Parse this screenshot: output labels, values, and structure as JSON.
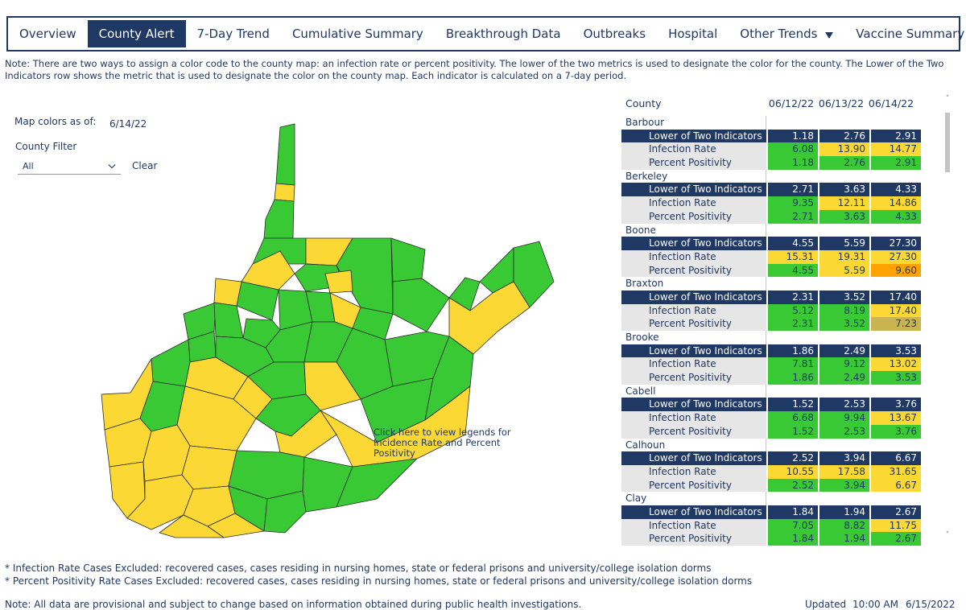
{
  "nav": {
    "items": [
      {
        "label": "Overview",
        "active": false
      },
      {
        "label": "County Alert",
        "active": true
      },
      {
        "label": "7-Day Trend",
        "active": false
      },
      {
        "label": "Cumulative Summary",
        "active": false
      },
      {
        "label": "Breakthrough Data",
        "active": false
      },
      {
        "label": "Outbreaks",
        "active": false
      },
      {
        "label": "Hospital",
        "active": false
      },
      {
        "label": "Other Trends",
        "active": false,
        "icon": "caret-down-icon"
      },
      {
        "label": "Vaccine Summary",
        "active": false
      }
    ],
    "active_color": "#1f3864"
  },
  "note_top": "Note: There are two ways to assign a color code to the county map: an infection rate or percent positivity. The lower of the two metrics is used to designate the color for the county. The Lower of the Two Indicators row shows the metric that is used to designate the color on the county map. Each indicator is calculated on a 7-day period.",
  "map_panel": {
    "colors_label": "Map colors as of:",
    "colors_date": "6/14/22",
    "filter_label": "County Filter",
    "filter_value": "All",
    "clear_label": "Clear",
    "legend_link": "Click here to view legends for Incidence Rate and Percent Positivity",
    "colors": {
      "green": "#38c935",
      "yellow": "#fcd835",
      "orange": "#ffa200",
      "tan": "#c9b44f",
      "navy": "#1f3864"
    }
  },
  "table": {
    "header": {
      "county": "County",
      "dates": [
        "06/12/22",
        "06/13/22",
        "06/14/22"
      ]
    },
    "counties": [
      {
        "name": "Barbour",
        "rows": [
          {
            "label": "Lower of Two Indicators",
            "values": [
              "1.18",
              "2.76",
              "2.91"
            ]
          },
          {
            "label": "Infection Rate",
            "values": [
              "6.08",
              "13.90",
              "14.77"
            ],
            "colors": [
              "green",
              "yellow",
              "yellow"
            ]
          },
          {
            "label": "Percent Positivity",
            "values": [
              "1.18",
              "2.76",
              "2.91"
            ],
            "colors": [
              "green",
              "green",
              "green"
            ]
          }
        ]
      },
      {
        "name": "Berkeley",
        "rows": [
          {
            "label": "Lower of Two Indicators",
            "values": [
              "2.71",
              "3.63",
              "4.33"
            ]
          },
          {
            "label": "Infection Rate",
            "values": [
              "9.35",
              "12.11",
              "14.86"
            ],
            "colors": [
              "green",
              "yellow",
              "yellow"
            ]
          },
          {
            "label": "Percent Positivity",
            "values": [
              "2.71",
              "3.63",
              "4.33"
            ],
            "colors": [
              "green",
              "green",
              "green"
            ]
          }
        ]
      },
      {
        "name": "Boone",
        "rows": [
          {
            "label": "Lower of Two Indicators",
            "values": [
              "4.55",
              "5.59",
              "27.30"
            ]
          },
          {
            "label": "Infection Rate",
            "values": [
              "15.31",
              "19.31",
              "27.30"
            ],
            "colors": [
              "yellow",
              "yellow",
              "yellow"
            ]
          },
          {
            "label": "Percent Positivity",
            "values": [
              "4.55",
              "5.59",
              "9.60"
            ],
            "colors": [
              "green",
              "yellow",
              "orange"
            ]
          }
        ]
      },
      {
        "name": "Braxton",
        "rows": [
          {
            "label": "Lower of Two Indicators",
            "values": [
              "2.31",
              "3.52",
              "17.40"
            ]
          },
          {
            "label": "Infection Rate",
            "values": [
              "5.12",
              "8.19",
              "17.40"
            ],
            "colors": [
              "green",
              "green",
              "yellow"
            ]
          },
          {
            "label": "Percent Positivity",
            "values": [
              "2.31",
              "3.52",
              "7.23"
            ],
            "colors": [
              "green",
              "green",
              "tan"
            ]
          }
        ]
      },
      {
        "name": "Brooke",
        "rows": [
          {
            "label": "Lower of Two Indicators",
            "values": [
              "1.86",
              "2.49",
              "3.53"
            ]
          },
          {
            "label": "Infection Rate",
            "values": [
              "7.81",
              "9.12",
              "13.02"
            ],
            "colors": [
              "green",
              "green",
              "yellow"
            ]
          },
          {
            "label": "Percent Positivity",
            "values": [
              "1.86",
              "2.49",
              "3.53"
            ],
            "colors": [
              "green",
              "green",
              "green"
            ]
          }
        ]
      },
      {
        "name": "Cabell",
        "rows": [
          {
            "label": "Lower of Two Indicators",
            "values": [
              "1.52",
              "2.53",
              "3.76"
            ]
          },
          {
            "label": "Infection Rate",
            "values": [
              "6.68",
              "9.94",
              "13.67"
            ],
            "colors": [
              "green",
              "green",
              "yellow"
            ]
          },
          {
            "label": "Percent Positivity",
            "values": [
              "1.52",
              "2.53",
              "3.76"
            ],
            "colors": [
              "green",
              "green",
              "green"
            ]
          }
        ]
      },
      {
        "name": "Calhoun",
        "rows": [
          {
            "label": "Lower of Two Indicators",
            "values": [
              "2.52",
              "3.94",
              "6.67"
            ]
          },
          {
            "label": "Infection Rate",
            "values": [
              "10.55",
              "17.58",
              "31.65"
            ],
            "colors": [
              "yellow",
              "yellow",
              "yellow"
            ]
          },
          {
            "label": "Percent Positivity",
            "values": [
              "2.52",
              "3.94",
              "6.67"
            ],
            "colors": [
              "green",
              "green",
              "yellow"
            ]
          }
        ]
      },
      {
        "name": "Clay",
        "rows": [
          {
            "label": "Lower of Two Indicators",
            "values": [
              "1.84",
              "1.94",
              "2.67"
            ]
          },
          {
            "label": "Infection Rate",
            "values": [
              "7.05",
              "8.82",
              "11.75"
            ],
            "colors": [
              "green",
              "green",
              "yellow"
            ]
          },
          {
            "label": "Percent Positivity",
            "values": [
              "1.84",
              "1.94",
              "2.67"
            ],
            "colors": [
              "green",
              "green",
              "green"
            ]
          }
        ]
      }
    ]
  },
  "footnotes": {
    "infection": "* Infection Rate Cases Excluded: recovered cases, cases residing in nursing homes, state or federal prisons and university/college isolation dorms",
    "positivity": "* Percent Positivity Rate Cases Excluded: recovered cases, cases residing in nursing homes, state or federal prisons and university/college isolation dorms",
    "provisional": "Note: All data are provisional and subject to change based on information obtained during public health investigations."
  },
  "updated": {
    "label": "Updated",
    "time": "10:00 AM",
    "date": "6/15/2022"
  }
}
